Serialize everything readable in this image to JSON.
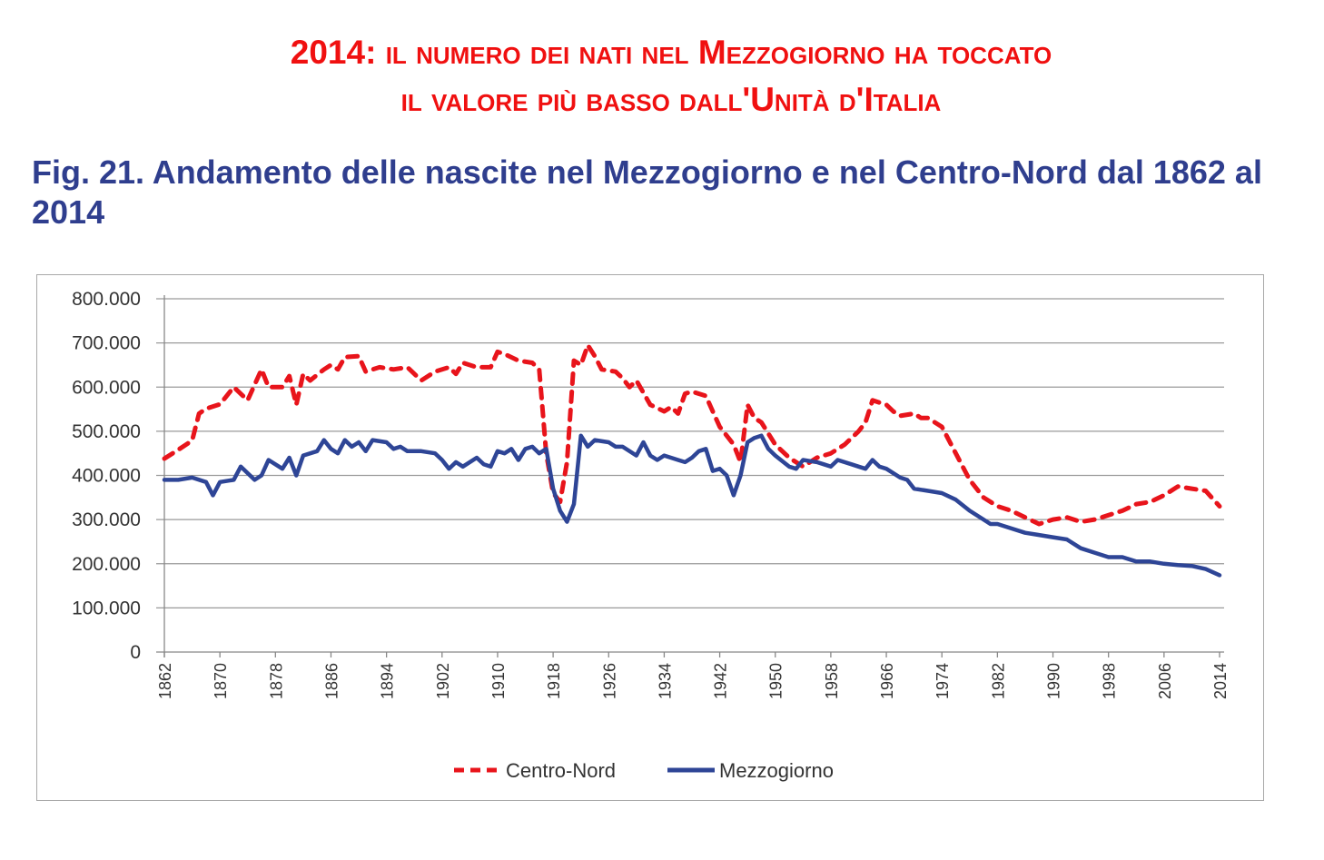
{
  "header": {
    "line1": "2014: il numero dei nati nel Mezzogiorno ha toccato",
    "line2": "il valore più basso dall'Unità d'Italia"
  },
  "figure_title": "Fig. 21. Andamento delle nascite nel Mezzogiorno e nel Centro-Nord dal 1862 al 2014",
  "chart_data": {
    "type": "line",
    "title": "Fig. 21. Andamento delle nascite nel Mezzogiorno e nel Centro-Nord dal 1862 al 2014",
    "xlabel": "",
    "ylabel": "",
    "xlim": [
      1862,
      2014
    ],
    "ylim": [
      0,
      800000
    ],
    "grid": true,
    "legend_position": "bottom",
    "y_ticks": [
      "0",
      "100.000",
      "200.000",
      "300.000",
      "400.000",
      "500.000",
      "600.000",
      "700.000",
      "800.000"
    ],
    "y_tick_values": [
      0,
      100000,
      200000,
      300000,
      400000,
      500000,
      600000,
      700000,
      800000
    ],
    "x_ticks": [
      "1862",
      "1870",
      "1878",
      "1886",
      "1894",
      "1902",
      "1910",
      "1918",
      "1926",
      "1934",
      "1942",
      "1950",
      "1958",
      "1966",
      "1974",
      "1982",
      "1990",
      "1998",
      "2006",
      "2014"
    ],
    "series": [
      {
        "name": "Centro-Nord",
        "color": "#e8141b",
        "style": "dashed",
        "x": [
          1862,
          1864,
          1866,
          1867,
          1868,
          1870,
          1872,
          1874,
          1876,
          1877,
          1879,
          1880,
          1881,
          1882,
          1883,
          1885,
          1886,
          1887,
          1888,
          1890,
          1891,
          1893,
          1895,
          1897,
          1899,
          1901,
          1903,
          1904,
          1905,
          1907,
          1909,
          1910,
          1911,
          1913,
          1915,
          1916,
          1917,
          1918,
          1919,
          1920,
          1921,
          1922,
          1923,
          1924,
          1925,
          1927,
          1928,
          1929,
          1930,
          1932,
          1934,
          1935,
          1936,
          1937,
          1938,
          1940,
          1941,
          1942,
          1944,
          1945,
          1946,
          1947,
          1948,
          1950,
          1952,
          1954,
          1956,
          1958,
          1960,
          1962,
          1963,
          1964,
          1966,
          1967,
          1968,
          1970,
          1971,
          1972,
          1974,
          1976,
          1978,
          1980,
          1982,
          1984,
          1986,
          1988,
          1990,
          1992,
          1994,
          1996,
          1998,
          2000,
          2002,
          2004,
          2006,
          2008,
          2010,
          2012,
          2014
        ],
        "values": [
          438000,
          458000,
          479000,
          540000,
          551000,
          561000,
          600000,
          570000,
          640000,
          600000,
          600000,
          625000,
          560000,
          630000,
          615000,
          640000,
          650000,
          640000,
          668000,
          670000,
          635000,
          645000,
          640000,
          645000,
          615000,
          635000,
          645000,
          630000,
          655000,
          645000,
          645000,
          680000,
          675000,
          660000,
          655000,
          640000,
          450000,
          360000,
          340000,
          430000,
          660000,
          650000,
          695000,
          670000,
          640000,
          635000,
          620000,
          600000,
          615000,
          560000,
          545000,
          555000,
          540000,
          585000,
          590000,
          580000,
          545000,
          510000,
          470000,
          430000,
          560000,
          530000,
          520000,
          470000,
          440000,
          420000,
          440000,
          450000,
          470000,
          500000,
          520000,
          570000,
          560000,
          545000,
          535000,
          540000,
          530000,
          530000,
          510000,
          450000,
          390000,
          350000,
          330000,
          320000,
          305000,
          290000,
          300000,
          305000,
          295000,
          300000,
          310000,
          320000,
          335000,
          340000,
          355000,
          375000,
          370000,
          365000,
          330000
        ]
      },
      {
        "name": "Mezzogiorno",
        "color": "#2e4596",
        "style": "solid",
        "x": [
          1862,
          1864,
          1866,
          1868,
          1869,
          1870,
          1872,
          1873,
          1875,
          1876,
          1877,
          1879,
          1880,
          1881,
          1882,
          1884,
          1885,
          1886,
          1887,
          1888,
          1889,
          1890,
          1891,
          1892,
          1894,
          1895,
          1896,
          1897,
          1899,
          1901,
          1902,
          1903,
          1904,
          1905,
          1907,
          1908,
          1909,
          1910,
          1911,
          1912,
          1913,
          1914,
          1915,
          1916,
          1917,
          1918,
          1919,
          1920,
          1921,
          1922,
          1923,
          1924,
          1926,
          1927,
          1928,
          1930,
          1931,
          1932,
          1933,
          1934,
          1936,
          1937,
          1938,
          1939,
          1940,
          1941,
          1942,
          1943,
          1944,
          1945,
          1946,
          1947,
          1948,
          1949,
          1950,
          1952,
          1953,
          1954,
          1956,
          1957,
          1958,
          1959,
          1961,
          1962,
          1963,
          1964,
          1965,
          1966,
          1968,
          1969,
          1970,
          1972,
          1974,
          1976,
          1978,
          1980,
          1981,
          1982,
          1984,
          1986,
          1988,
          1990,
          1992,
          1994,
          1996,
          1998,
          2000,
          2002,
          2004,
          2006,
          2008,
          2010,
          2012,
          2014
        ],
        "values": [
          390000,
          390000,
          395000,
          385000,
          355000,
          385000,
          390000,
          420000,
          390000,
          400000,
          435000,
          415000,
          440000,
          400000,
          445000,
          455000,
          480000,
          460000,
          450000,
          480000,
          465000,
          475000,
          455000,
          480000,
          475000,
          460000,
          465000,
          455000,
          455000,
          450000,
          435000,
          415000,
          430000,
          420000,
          440000,
          425000,
          420000,
          455000,
          450000,
          460000,
          435000,
          460000,
          465000,
          450000,
          460000,
          370000,
          320000,
          295000,
          335000,
          490000,
          465000,
          480000,
          475000,
          465000,
          465000,
          445000,
          475000,
          445000,
          435000,
          445000,
          435000,
          430000,
          440000,
          455000,
          460000,
          410000,
          415000,
          400000,
          355000,
          400000,
          475000,
          485000,
          490000,
          460000,
          445000,
          420000,
          415000,
          435000,
          430000,
          425000,
          420000,
          435000,
          425000,
          420000,
          415000,
          435000,
          420000,
          415000,
          395000,
          390000,
          370000,
          365000,
          360000,
          345000,
          320000,
          300000,
          290000,
          290000,
          280000,
          270000,
          265000,
          260000,
          255000,
          235000,
          225000,
          215000,
          215000,
          205000,
          205000,
          200000,
          197000,
          195000,
          188000,
          174000
        ]
      }
    ]
  }
}
